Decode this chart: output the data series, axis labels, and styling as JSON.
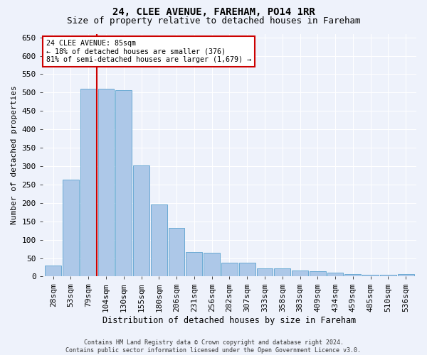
{
  "title_line1": "24, CLEE AVENUE, FAREHAM, PO14 1RR",
  "title_line2": "Size of property relative to detached houses in Fareham",
  "xlabel": "Distribution of detached houses by size in Fareham",
  "ylabel": "Number of detached properties",
  "categories": [
    "28sqm",
    "53sqm",
    "79sqm",
    "104sqm",
    "130sqm",
    "155sqm",
    "180sqm",
    "206sqm",
    "231sqm",
    "256sqm",
    "282sqm",
    "307sqm",
    "333sqm",
    "358sqm",
    "383sqm",
    "409sqm",
    "434sqm",
    "459sqm",
    "485sqm",
    "510sqm",
    "536sqm"
  ],
  "values": [
    30,
    263,
    511,
    511,
    507,
    302,
    196,
    132,
    66,
    65,
    38,
    37,
    23,
    22,
    16,
    14,
    10,
    7,
    5,
    5,
    6
  ],
  "bar_color": "#adc8e8",
  "bar_edge_color": "#6aaad4",
  "highlight_bar_index": 2,
  "highlight_color": "#cc0000",
  "annotation_text": "24 CLEE AVENUE: 85sqm\n← 18% of detached houses are smaller (376)\n81% of semi-detached houses are larger (1,679) →",
  "annotation_box_color": "#ffffff",
  "annotation_box_edge": "#cc0000",
  "ylim": [
    0,
    660
  ],
  "yticks": [
    0,
    50,
    100,
    150,
    200,
    250,
    300,
    350,
    400,
    450,
    500,
    550,
    600,
    650
  ],
  "footer": "Contains HM Land Registry data © Crown copyright and database right 2024.\nContains public sector information licensed under the Open Government Licence v3.0.",
  "bg_color": "#eef2fb",
  "grid_color": "#ffffff",
  "title_fontsize": 10,
  "subtitle_fontsize": 9,
  "axis_fontsize": 8,
  "footer_fontsize": 6
}
